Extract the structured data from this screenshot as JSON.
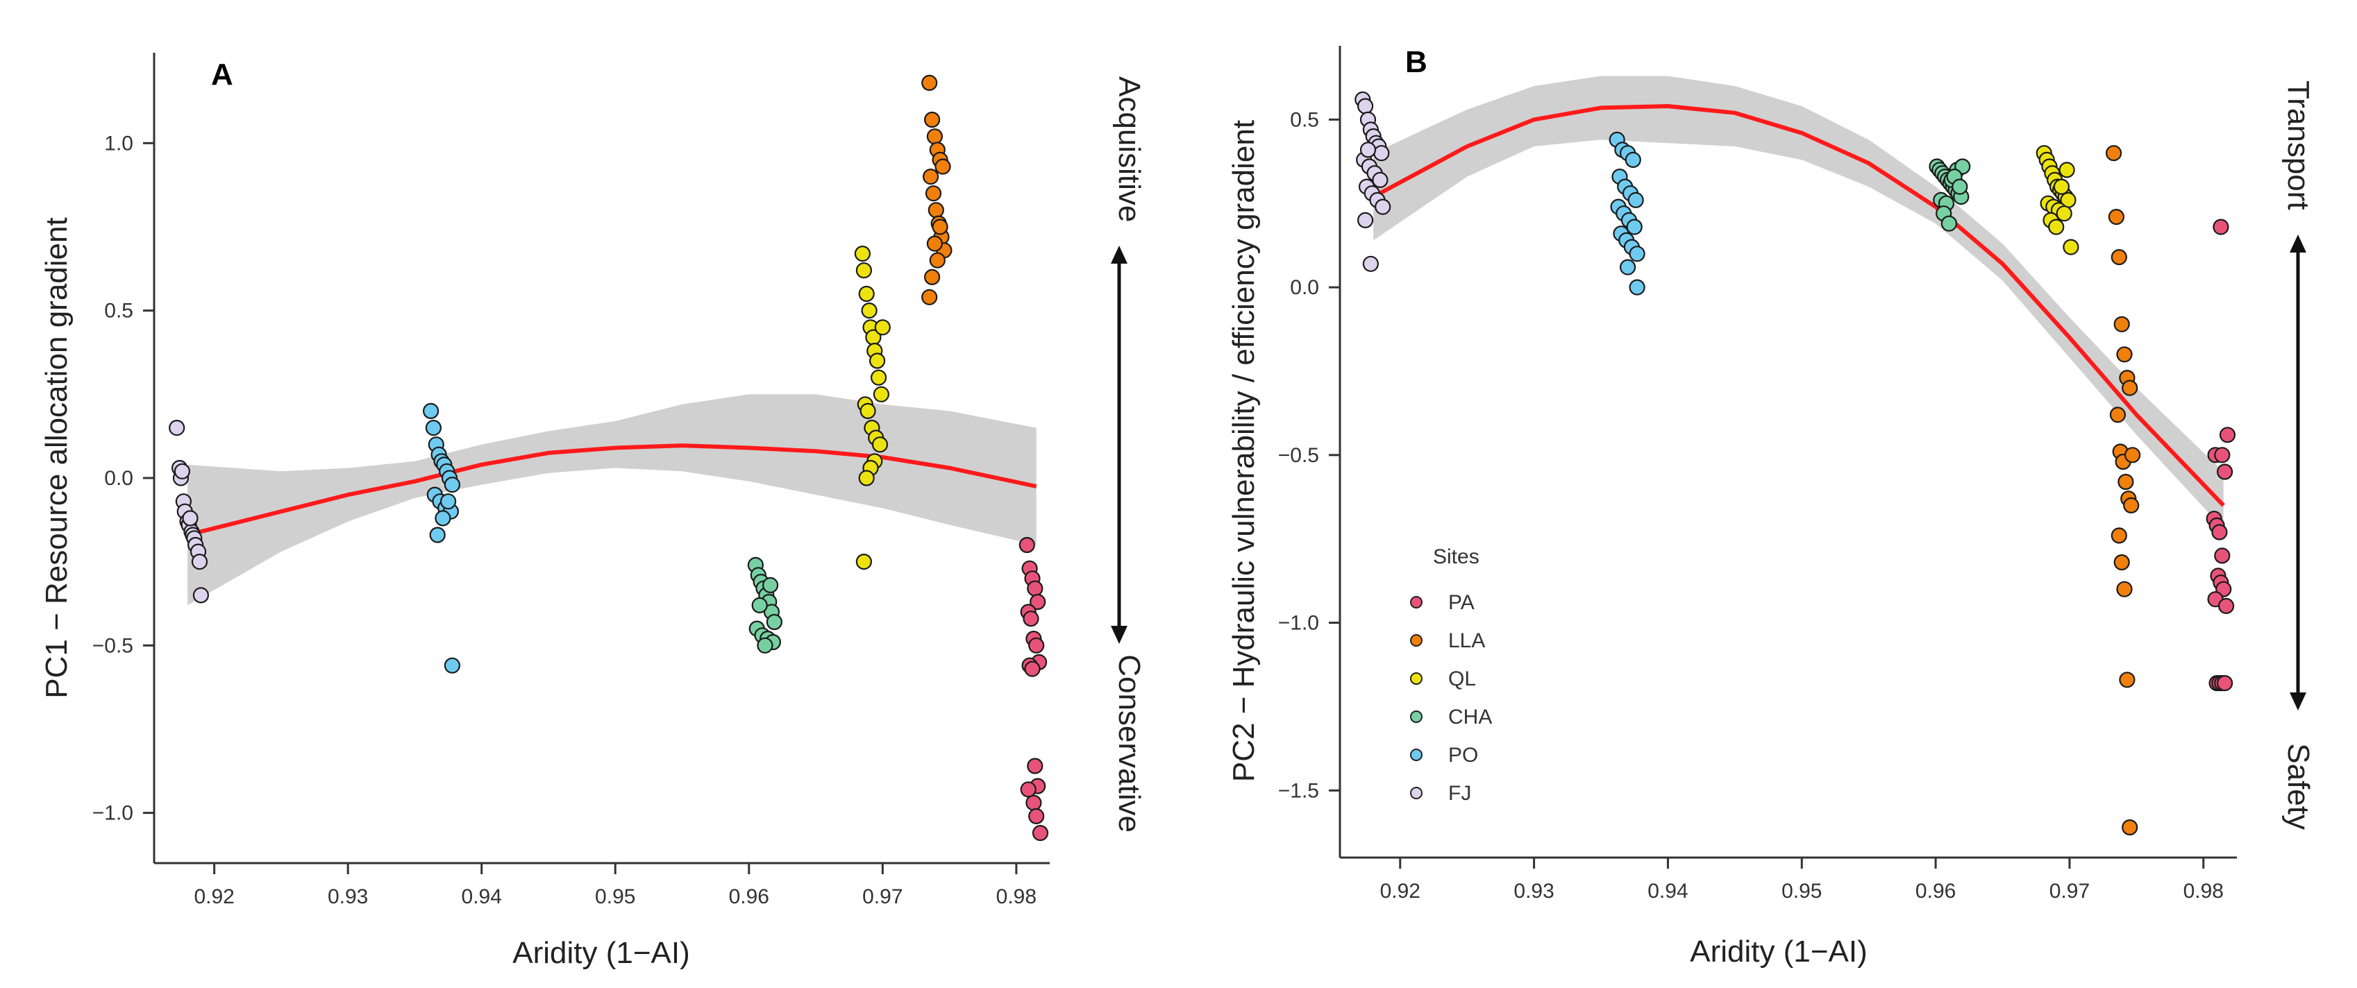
{
  "chart_data": [
    {
      "type": "scatter",
      "panel_label": "A",
      "xlabel": "Aridity (1−AI)",
      "ylabel": "PC1 − Resource allocation gradient",
      "xlim": [
        0.9155,
        0.9825
      ],
      "ylim": [
        -1.15,
        1.27
      ],
      "xticks": [
        0.92,
        0.93,
        0.94,
        0.95,
        0.96,
        0.97,
        0.98
      ],
      "yticks": [
        -1.0,
        -0.5,
        0.0,
        0.5,
        1.0
      ],
      "xtick_labels": [
        "0.92",
        "0.93",
        "0.94",
        "0.95",
        "0.96",
        "0.97",
        "0.98"
      ],
      "ytick_labels": [
        "−1.0",
        "−0.5",
        "0.0",
        "0.5",
        "1.0"
      ],
      "gradient_top": "Acquisitive",
      "gradient_bottom": "Conservative",
      "fit": {
        "x": [
          0.918,
          0.925,
          0.93,
          0.935,
          0.94,
          0.945,
          0.95,
          0.955,
          0.96,
          0.965,
          0.97,
          0.975,
          0.9815
        ],
        "y": [
          -0.17,
          -0.1,
          -0.05,
          -0.01,
          0.04,
          0.075,
          0.09,
          0.097,
          0.09,
          0.08,
          0.062,
          0.03,
          -0.025
        ],
        "lower": [
          -0.38,
          -0.22,
          -0.13,
          -0.06,
          -0.02,
          0.015,
          0.03,
          0.02,
          -0.01,
          -0.05,
          -0.09,
          -0.14,
          -0.2
        ],
        "upper": [
          0.04,
          0.02,
          0.03,
          0.05,
          0.1,
          0.14,
          0.17,
          0.22,
          0.25,
          0.25,
          0.22,
          0.2,
          0.15
        ]
      },
      "series": [
        {
          "name": "FJ",
          "x": [
            0.9172,
            0.9174,
            0.9175,
            0.9177,
            0.9178,
            0.918,
            0.9181,
            0.9183,
            0.9184,
            0.9185,
            0.9186,
            0.9188,
            0.9189,
            0.919,
            0.9176,
            0.9182
          ],
          "y": [
            0.15,
            0.03,
            0.0,
            -0.07,
            -0.1,
            -0.13,
            -0.14,
            -0.16,
            -0.17,
            -0.18,
            -0.2,
            -0.22,
            -0.25,
            -0.35,
            0.02,
            -0.12
          ]
        },
        {
          "name": "PO",
          "x": [
            0.9362,
            0.9364,
            0.9366,
            0.9368,
            0.937,
            0.9372,
            0.9374,
            0.9376,
            0.9378,
            0.9365,
            0.9369,
            0.9373,
            0.9377,
            0.9371,
            0.9367,
            0.9375,
            0.9378
          ],
          "y": [
            0.2,
            0.15,
            0.1,
            0.07,
            0.05,
            0.04,
            0.02,
            0.0,
            -0.02,
            -0.05,
            -0.07,
            -0.09,
            -0.1,
            -0.12,
            -0.17,
            -0.07,
            -0.56
          ]
        },
        {
          "name": "CHA",
          "x": [
            0.9605,
            0.9607,
            0.9609,
            0.9611,
            0.9613,
            0.9615,
            0.9617,
            0.9619,
            0.9606,
            0.961,
            0.9614,
            0.9618,
            0.9612,
            0.9616,
            0.9608
          ],
          "y": [
            -0.26,
            -0.29,
            -0.31,
            -0.33,
            -0.35,
            -0.37,
            -0.4,
            -0.43,
            -0.45,
            -0.47,
            -0.48,
            -0.49,
            -0.5,
            -0.32,
            -0.38
          ]
        },
        {
          "name": "QL",
          "x": [
            0.9685,
            0.9686,
            0.9688,
            0.969,
            0.9691,
            0.9693,
            0.9694,
            0.9696,
            0.9697,
            0.9699,
            0.9687,
            0.9689,
            0.9692,
            0.9695,
            0.9698,
            0.9694,
            0.9691,
            0.9688,
            0.9686,
            0.97
          ],
          "y": [
            0.67,
            0.62,
            0.55,
            0.5,
            0.45,
            0.42,
            0.38,
            0.35,
            0.3,
            0.25,
            0.22,
            0.2,
            0.15,
            0.12,
            0.1,
            0.05,
            0.03,
            0.0,
            -0.25,
            0.45
          ]
        },
        {
          "name": "LLA",
          "x": [
            0.9735,
            0.9737,
            0.9739,
            0.9741,
            0.9743,
            0.9745,
            0.9736,
            0.9738,
            0.974,
            0.9742,
            0.9744,
            0.9746,
            0.9741,
            0.9739,
            0.9743,
            0.9737,
            0.9735
          ],
          "y": [
            1.18,
            1.07,
            1.02,
            0.98,
            0.95,
            0.93,
            0.9,
            0.85,
            0.8,
            0.76,
            0.72,
            0.68,
            0.65,
            0.7,
            0.75,
            0.6,
            0.54
          ]
        },
        {
          "name": "PA",
          "x": [
            0.9808,
            0.981,
            0.9812,
            0.9814,
            0.9816,
            0.9809,
            0.9811,
            0.9813,
            0.9815,
            0.9817,
            0.981,
            0.9812,
            0.9814,
            0.9816,
            0.9809,
            0.9813,
            0.9815,
            0.9818
          ],
          "y": [
            -0.2,
            -0.27,
            -0.3,
            -0.33,
            -0.37,
            -0.4,
            -0.42,
            -0.48,
            -0.5,
            -0.55,
            -0.56,
            -0.57,
            -0.86,
            -0.92,
            -0.93,
            -0.97,
            -1.01,
            -1.06
          ]
        }
      ]
    },
    {
      "type": "scatter",
      "panel_label": "B",
      "xlabel": "Aridity (1−AI)",
      "ylabel": "PC2 − Hydraulic vulnerability / efficiency gradient",
      "xlim": [
        0.9155,
        0.9825
      ],
      "ylim": [
        -1.7,
        0.72
      ],
      "xticks": [
        0.92,
        0.93,
        0.94,
        0.95,
        0.96,
        0.97,
        0.98
      ],
      "yticks": [
        -1.5,
        -1.0,
        -0.5,
        0.0,
        0.5
      ],
      "xtick_labels": [
        "0.92",
        "0.93",
        "0.94",
        "0.95",
        "0.96",
        "0.97",
        "0.98"
      ],
      "ytick_labels": [
        "−1.5",
        "−1.0",
        "−0.5",
        "0.0",
        "0.5"
      ],
      "gradient_top": "Transport",
      "gradient_bottom": "Safety",
      "legend_title": "Sites",
      "fit": {
        "x": [
          0.918,
          0.925,
          0.93,
          0.935,
          0.94,
          0.945,
          0.95,
          0.955,
          0.96,
          0.965,
          0.97,
          0.975,
          0.9815
        ],
        "y": [
          0.27,
          0.42,
          0.5,
          0.535,
          0.54,
          0.52,
          0.46,
          0.37,
          0.24,
          0.07,
          -0.15,
          -0.38,
          -0.65
        ],
        "lower": [
          0.14,
          0.33,
          0.42,
          0.44,
          0.43,
          0.42,
          0.38,
          0.3,
          0.19,
          0.02,
          -0.21,
          -0.44,
          -0.72
        ],
        "upper": [
          0.4,
          0.53,
          0.6,
          0.63,
          0.63,
          0.6,
          0.54,
          0.44,
          0.3,
          0.13,
          -0.09,
          -0.3,
          -0.55
        ]
      },
      "series": [
        {
          "name": "PA",
          "x": [
            0.9813,
            0.9818,
            0.9809,
            0.9814,
            0.9816,
            0.9808,
            0.981,
            0.9812,
            0.9814,
            0.9811,
            0.9813,
            0.9815,
            0.9809,
            0.9817,
            0.981,
            0.9812,
            0.9814,
            0.9816
          ],
          "y": [
            0.18,
            -0.44,
            -0.5,
            -0.5,
            -0.55,
            -0.69,
            -0.71,
            -0.73,
            -0.8,
            -0.86,
            -0.88,
            -0.9,
            -0.93,
            -0.95,
            -1.18,
            -1.18,
            -1.18,
            -1.18
          ]
        },
        {
          "name": "LLA",
          "x": [
            0.9733,
            0.9735,
            0.9737,
            0.9739,
            0.9741,
            0.9743,
            0.9745,
            0.9736,
            0.9738,
            0.974,
            0.9742,
            0.9744,
            0.9746,
            0.9737,
            0.9739,
            0.9741,
            0.9743,
            0.9745,
            0.9747
          ],
          "y": [
            0.4,
            0.21,
            0.09,
            -0.11,
            -0.2,
            -0.27,
            -0.3,
            -0.38,
            -0.49,
            -0.52,
            -0.58,
            -0.63,
            -0.65,
            -0.74,
            -0.82,
            -0.9,
            -1.17,
            -1.61,
            -0.5
          ]
        },
        {
          "name": "QL",
          "x": [
            0.9681,
            0.9683,
            0.9685,
            0.9687,
            0.9689,
            0.9691,
            0.9693,
            0.9695,
            0.9697,
            0.9699,
            0.9684,
            0.9688,
            0.9692,
            0.9696,
            0.9686,
            0.969,
            0.9694,
            0.9698,
            0.9701
          ],
          "y": [
            0.4,
            0.38,
            0.36,
            0.34,
            0.32,
            0.3,
            0.29,
            0.28,
            0.27,
            0.26,
            0.25,
            0.24,
            0.23,
            0.22,
            0.2,
            0.18,
            0.3,
            0.35,
            0.12
          ]
        },
        {
          "name": "CHA",
          "x": [
            0.9601,
            0.9603,
            0.9605,
            0.9607,
            0.9609,
            0.9611,
            0.9613,
            0.9615,
            0.9617,
            0.9619,
            0.9604,
            0.9608,
            0.9612,
            0.9616,
            0.962,
            0.9606,
            0.961,
            0.9614,
            0.9618
          ],
          "y": [
            0.36,
            0.35,
            0.34,
            0.33,
            0.32,
            0.31,
            0.3,
            0.29,
            0.28,
            0.27,
            0.26,
            0.25,
            0.32,
            0.35,
            0.36,
            0.22,
            0.19,
            0.33,
            0.3
          ]
        },
        {
          "name": "PO",
          "x": [
            0.9362,
            0.9366,
            0.937,
            0.9374,
            0.9364,
            0.9368,
            0.9372,
            0.9376,
            0.9363,
            0.9367,
            0.9371,
            0.9375,
            0.9365,
            0.9369,
            0.9373,
            0.9377,
            0.937,
            0.9377
          ],
          "y": [
            0.44,
            0.41,
            0.4,
            0.38,
            0.33,
            0.3,
            0.28,
            0.26,
            0.24,
            0.22,
            0.2,
            0.18,
            0.16,
            0.14,
            0.12,
            0.1,
            0.06,
            0.0
          ]
        },
        {
          "name": "FJ",
          "x": [
            0.9172,
            0.9174,
            0.9176,
            0.9178,
            0.918,
            0.9182,
            0.9184,
            0.9186,
            0.9173,
            0.9177,
            0.9181,
            0.9185,
            0.9175,
            0.9179,
            0.9183,
            0.9187,
            0.9174,
            0.9178,
            0.9176
          ],
          "y": [
            0.56,
            0.54,
            0.5,
            0.47,
            0.45,
            0.43,
            0.42,
            0.4,
            0.38,
            0.36,
            0.34,
            0.32,
            0.3,
            0.28,
            0.26,
            0.24,
            0.2,
            0.07,
            0.41
          ]
        }
      ]
    }
  ],
  "legend": {
    "title": "Sites",
    "entries": [
      {
        "name": "PA",
        "color": "#e8537a"
      },
      {
        "name": "LLA",
        "color": "#f07f0b"
      },
      {
        "name": "QL",
        "color": "#ece30e"
      },
      {
        "name": "CHA",
        "color": "#77d0a2"
      },
      {
        "name": "PO",
        "color": "#6fcaf0"
      },
      {
        "name": "FJ",
        "color": "#ddd3ec"
      }
    ]
  },
  "colors": {
    "fit_line": "#ff1a1a",
    "ci_band": "#c8c8c8",
    "axis": "#333333",
    "point_edge": "#1a1a1a"
  }
}
